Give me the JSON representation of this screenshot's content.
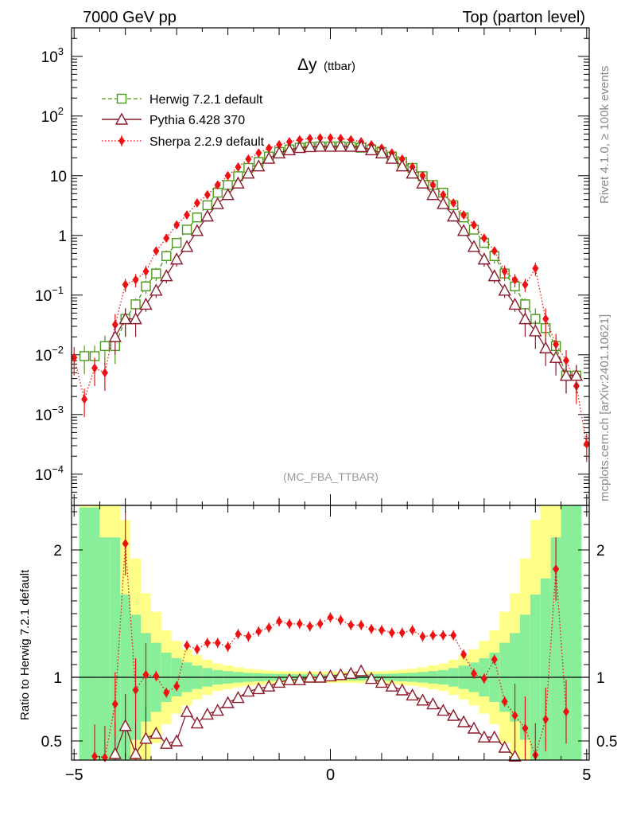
{
  "header": {
    "energy_label": "7000 GeV pp",
    "process_label": "Top (parton level)"
  },
  "side_labels": {
    "rivet": "Rivet 4.1.0, ≥ 100k events",
    "mcplots": "mcplots.cern.ch [arXiv:2401.10621]"
  },
  "chart_data": {
    "type": "line",
    "title": "Δy",
    "title_suffix": "(ttbar)",
    "analysis_label": "(MC_FBA_TTBAR)",
    "xlim": [
      -5.05,
      5.05
    ],
    "x_ticks": [
      -5,
      0,
      5
    ],
    "x_tick_labels": [
      "−5",
      "0",
      "5"
    ],
    "main": {
      "yscale": "log",
      "ylim": [
        3e-05,
        3000
      ],
      "y_tick_labels": [
        {
          "base": "10",
          "exp": "3",
          "value": 1000
        },
        {
          "base": "10",
          "exp": "2",
          "value": 100
        },
        {
          "base": "10",
          "exp": "",
          "value": 10
        },
        {
          "base": "1",
          "exp": "",
          "value": 1
        },
        {
          "base": "10",
          "exp": "−1",
          "value": 0.1
        },
        {
          "base": "10",
          "exp": "−2",
          "value": 0.01
        },
        {
          "base": "10",
          "exp": "−3",
          "value": 0.001
        },
        {
          "base": "10",
          "exp": "−4",
          "value": 0.0001
        }
      ]
    },
    "ratio": {
      "ylabel": "Ratio to Herwig 7.2.1 default",
      "ylim": [
        0.35,
        2.35
      ],
      "y_ticks": [
        0.5,
        1,
        2
      ],
      "y_tick_labels": [
        "0.5",
        "1",
        "2"
      ],
      "reference": 1
    },
    "legend": {
      "position": "top-left",
      "entries": [
        {
          "label": "Herwig 7.2.1 default",
          "series": "herwig"
        },
        {
          "label": "Pythia 6.428 370",
          "series": "pythia"
        },
        {
          "label": "Sherpa 2.2.9 default",
          "series": "sherpa"
        }
      ]
    },
    "series": [
      {
        "name": "Herwig 7.2.1 default",
        "key": "herwig",
        "color": "#4a9a1a",
        "marker": "open-square",
        "line": "dashed",
        "x": [
          -4.8,
          -4.6,
          -4.4,
          -4.2,
          -4.0,
          -3.8,
          -3.6,
          -3.4,
          -3.2,
          -3.0,
          -2.8,
          -2.6,
          -2.4,
          -2.2,
          -2.0,
          -1.8,
          -1.6,
          -1.4,
          -1.2,
          -1.0,
          -0.8,
          -0.6,
          -0.4,
          -0.2,
          0.0,
          0.2,
          0.4,
          0.6,
          0.8,
          1.0,
          1.2,
          1.4,
          1.6,
          1.8,
          2.0,
          2.2,
          2.4,
          2.6,
          2.8,
          3.0,
          3.2,
          3.4,
          3.6,
          3.8,
          4.0,
          4.2,
          4.4,
          4.6,
          4.8
        ],
        "values": [
          0.0095,
          0.0095,
          0.014,
          0.014,
          0.04,
          0.07,
          0.14,
          0.23,
          0.45,
          0.75,
          1.25,
          2.0,
          3.2,
          5.2,
          7.0,
          9.8,
          13.5,
          17.0,
          21.0,
          25.0,
          27.5,
          29.5,
          30.5,
          31.0,
          31.0,
          31.0,
          30.5,
          29.5,
          27.5,
          25.0,
          21.0,
          17.0,
          13.5,
          9.8,
          7.0,
          5.2,
          3.2,
          2.0,
          1.25,
          0.75,
          0.45,
          0.23,
          0.14,
          0.07,
          0.04,
          0.028,
          0.014,
          0.0045,
          0.0045
        ]
      },
      {
        "name": "Pythia 6.428 370",
        "key": "pythia",
        "color": "#8b1a2a",
        "marker": "open-triangle",
        "line": "solid",
        "x": [
          -4.8,
          -4.6,
          -4.4,
          -4.2,
          -4.0,
          -3.8,
          -3.6,
          -3.4,
          -3.2,
          -3.0,
          -2.8,
          -2.6,
          -2.4,
          -2.2,
          -2.0,
          -1.8,
          -1.6,
          -1.4,
          -1.2,
          -1.0,
          -0.8,
          -0.6,
          -0.4,
          -0.2,
          0.0,
          0.2,
          0.4,
          0.6,
          0.8,
          1.0,
          1.2,
          1.4,
          1.6,
          1.8,
          2.0,
          2.2,
          2.4,
          2.6,
          2.8,
          3.0,
          3.2,
          3.4,
          3.6,
          3.8,
          4.0,
          4.2,
          4.4,
          4.6,
          4.8
        ],
        "values": [
          null,
          null,
          null,
          0.02,
          0.04,
          0.04,
          0.07,
          0.12,
          0.21,
          0.4,
          0.65,
          1.2,
          2.1,
          3.4,
          4.8,
          7.5,
          11.0,
          14.5,
          19.5,
          24.0,
          27.0,
          29.5,
          30.5,
          31.0,
          31.0,
          31.0,
          31.0,
          30.5,
          27.0,
          24.0,
          19.5,
          14.5,
          11.0,
          7.5,
          4.8,
          3.4,
          2.1,
          1.2,
          0.65,
          0.4,
          0.21,
          0.12,
          0.07,
          0.04,
          0.025,
          0.013,
          0.009,
          0.0045,
          0.0045
        ]
      },
      {
        "name": "Sherpa 2.2.9 default",
        "key": "sherpa",
        "color": "#ee1111",
        "marker": "filled-diamond",
        "line": "dotted",
        "x": [
          -5.0,
          -4.8,
          -4.6,
          -4.4,
          -4.2,
          -4.0,
          -3.8,
          -3.6,
          -3.4,
          -3.2,
          -3.0,
          -2.8,
          -2.6,
          -2.4,
          -2.2,
          -2.0,
          -1.8,
          -1.6,
          -1.4,
          -1.2,
          -1.0,
          -0.8,
          -0.6,
          -0.4,
          -0.2,
          0.0,
          0.2,
          0.4,
          0.6,
          0.8,
          1.0,
          1.2,
          1.4,
          1.6,
          1.8,
          2.0,
          2.2,
          2.4,
          2.6,
          2.8,
          3.0,
          3.2,
          3.4,
          3.6,
          3.8,
          4.0,
          4.2,
          4.4,
          4.6,
          4.8,
          5.0
        ],
        "values": [
          0.009,
          0.0018,
          0.006,
          0.005,
          0.032,
          0.15,
          0.18,
          0.25,
          0.55,
          0.9,
          1.5,
          2.2,
          3.5,
          4.8,
          7.0,
          10.0,
          14.0,
          19.0,
          24.0,
          29.0,
          33.0,
          37.0,
          40.0,
          42.0,
          43.0,
          43.0,
          42.0,
          40.0,
          37.0,
          33.0,
          29.0,
          24.0,
          19.0,
          14.0,
          10.0,
          7.0,
          4.8,
          3.5,
          2.2,
          1.5,
          0.9,
          0.55,
          0.25,
          0.18,
          0.15,
          0.28,
          0.04,
          0.015,
          0.008,
          0.003,
          0.00032
        ]
      }
    ],
    "ratio_series": [
      {
        "key": "pythia",
        "x": [
          -4.2,
          -4.0,
          -3.8,
          -3.6,
          -3.4,
          -3.2,
          -3.0,
          -2.8,
          -2.6,
          -2.4,
          -2.2,
          -2.0,
          -1.8,
          -1.6,
          -1.4,
          -1.2,
          -1.0,
          -0.8,
          -0.6,
          -0.4,
          -0.2,
          0.0,
          0.2,
          0.4,
          0.6,
          0.8,
          1.0,
          1.2,
          1.4,
          1.6,
          1.8,
          2.0,
          2.2,
          2.4,
          2.6,
          2.8,
          3.0,
          3.2,
          3.4,
          3.6
        ],
        "values": [
          0.4,
          0.62,
          0.4,
          0.52,
          0.56,
          0.48,
          0.5,
          0.73,
          0.64,
          0.71,
          0.74,
          0.8,
          0.84,
          0.89,
          0.91,
          0.93,
          0.96,
          0.98,
          0.98,
          1.0,
          1.0,
          1.01,
          1.02,
          1.03,
          1.05,
          0.99,
          0.96,
          0.93,
          0.9,
          0.86,
          0.82,
          0.79,
          0.74,
          0.7,
          0.65,
          0.6,
          0.53,
          0.53,
          0.45,
          0.38
        ]
      },
      {
        "key": "sherpa",
        "x": [
          -4.6,
          -4.4,
          -4.2,
          -4.0,
          -3.8,
          -3.6,
          -3.4,
          -3.2,
          -3.0,
          -2.8,
          -2.6,
          -2.4,
          -2.2,
          -2.0,
          -1.8,
          -1.6,
          -1.4,
          -1.2,
          -1.0,
          -0.8,
          -0.6,
          -0.4,
          -0.2,
          0.0,
          0.2,
          0.4,
          0.6,
          0.8,
          1.0,
          1.2,
          1.4,
          1.6,
          1.8,
          2.0,
          2.2,
          2.4,
          2.6,
          2.8,
          3.0,
          3.2,
          3.4,
          3.6,
          3.8,
          4.0,
          4.2,
          4.4,
          4.6
        ],
        "values": [
          0.38,
          0.37,
          0.79,
          2.05,
          0.9,
          1.02,
          1.01,
          0.88,
          0.93,
          1.25,
          1.22,
          1.27,
          1.27,
          1.24,
          1.34,
          1.32,
          1.36,
          1.39,
          1.44,
          1.42,
          1.42,
          1.4,
          1.42,
          1.47,
          1.45,
          1.41,
          1.41,
          1.38,
          1.37,
          1.35,
          1.35,
          1.37,
          1.32,
          1.33,
          1.33,
          1.33,
          1.18,
          1.03,
          0.99,
          1.14,
          0.81,
          0.7,
          0.6,
          0.39,
          0.67,
          1.85,
          0.73
        ]
      }
    ]
  }
}
